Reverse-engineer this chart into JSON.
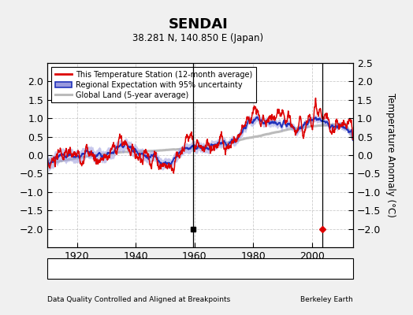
{
  "title": "SENDAI",
  "subtitle": "38.281 N, 140.850 E (Japan)",
  "ylabel": "Temperature Anomaly (°C)",
  "xlabel_note": "Data Quality Controlled and Aligned at Breakpoints",
  "credit": "Berkeley Earth",
  "year_start": 1910,
  "year_end": 2014,
  "ylim": [
    -2.5,
    2.5
  ],
  "yticks_left": [
    -2,
    -1.5,
    -1,
    -0.5,
    0,
    0.5,
    1,
    1.5,
    2
  ],
  "yticks_right": [
    -2,
    -1.5,
    -1,
    -0.5,
    0,
    0.5,
    1,
    1.5,
    2,
    2.5
  ],
  "xticks": [
    1920,
    1940,
    1960,
    1980,
    2000
  ],
  "bg_color": "#f0f0f0",
  "plot_bg_color": "#ffffff",
  "station_color": "#dd0000",
  "regional_color": "#2233bb",
  "regional_fill_color": "#9999dd",
  "global_color": "#bbbbbb",
  "legend_labels": [
    "This Temperature Station (12-month average)",
    "Regional Expectation with 95% uncertainty",
    "Global Land (5-year average)"
  ],
  "empirical_break_year": 1959.5,
  "station_move_year": 2003.5,
  "marker_y": -2.0
}
